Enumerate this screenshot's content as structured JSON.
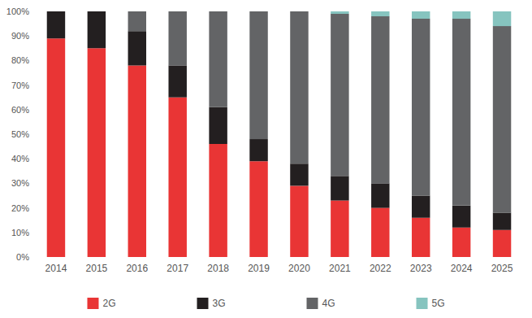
{
  "chart_data": {
    "type": "bar",
    "stacked": true,
    "grid": false,
    "legend": "bottom",
    "categories": [
      "2014",
      "2015",
      "2016",
      "2017",
      "2018",
      "2019",
      "2020",
      "2021",
      "2022",
      "2023",
      "2024",
      "2025"
    ],
    "series": [
      {
        "name": "2G",
        "color": "#e93535",
        "values": [
          89,
          85,
          78,
          65,
          46,
          39,
          29,
          23,
          20,
          16,
          12,
          11
        ]
      },
      {
        "name": "3G",
        "color": "#231f20",
        "values": [
          11,
          15,
          14,
          13,
          15,
          9,
          9,
          10,
          10,
          9,
          9,
          7
        ]
      },
      {
        "name": "4G",
        "color": "#636466",
        "values": [
          0,
          0,
          8,
          22,
          39,
          52,
          62,
          66,
          68,
          72,
          76,
          76
        ]
      },
      {
        "name": "5G",
        "color": "#86c4bf",
        "values": [
          0,
          0,
          0,
          0,
          0,
          0,
          0,
          1,
          2,
          3,
          3,
          6
        ]
      }
    ],
    "ylim": [
      0,
      100
    ],
    "yticks": [
      {
        "value": 0,
        "label": "0%"
      },
      {
        "value": 10,
        "label": "10%"
      },
      {
        "value": 20,
        "label": "20%"
      },
      {
        "value": 30,
        "label": "30%"
      },
      {
        "value": 40,
        "label": "40%"
      },
      {
        "value": 50,
        "label": "50%"
      },
      {
        "value": 60,
        "label": "60%"
      },
      {
        "value": 70,
        "label": "70%"
      },
      {
        "value": 80,
        "label": "80%"
      },
      {
        "value": 90,
        "label": "90%"
      },
      {
        "value": 100,
        "label": "100%"
      }
    ]
  }
}
